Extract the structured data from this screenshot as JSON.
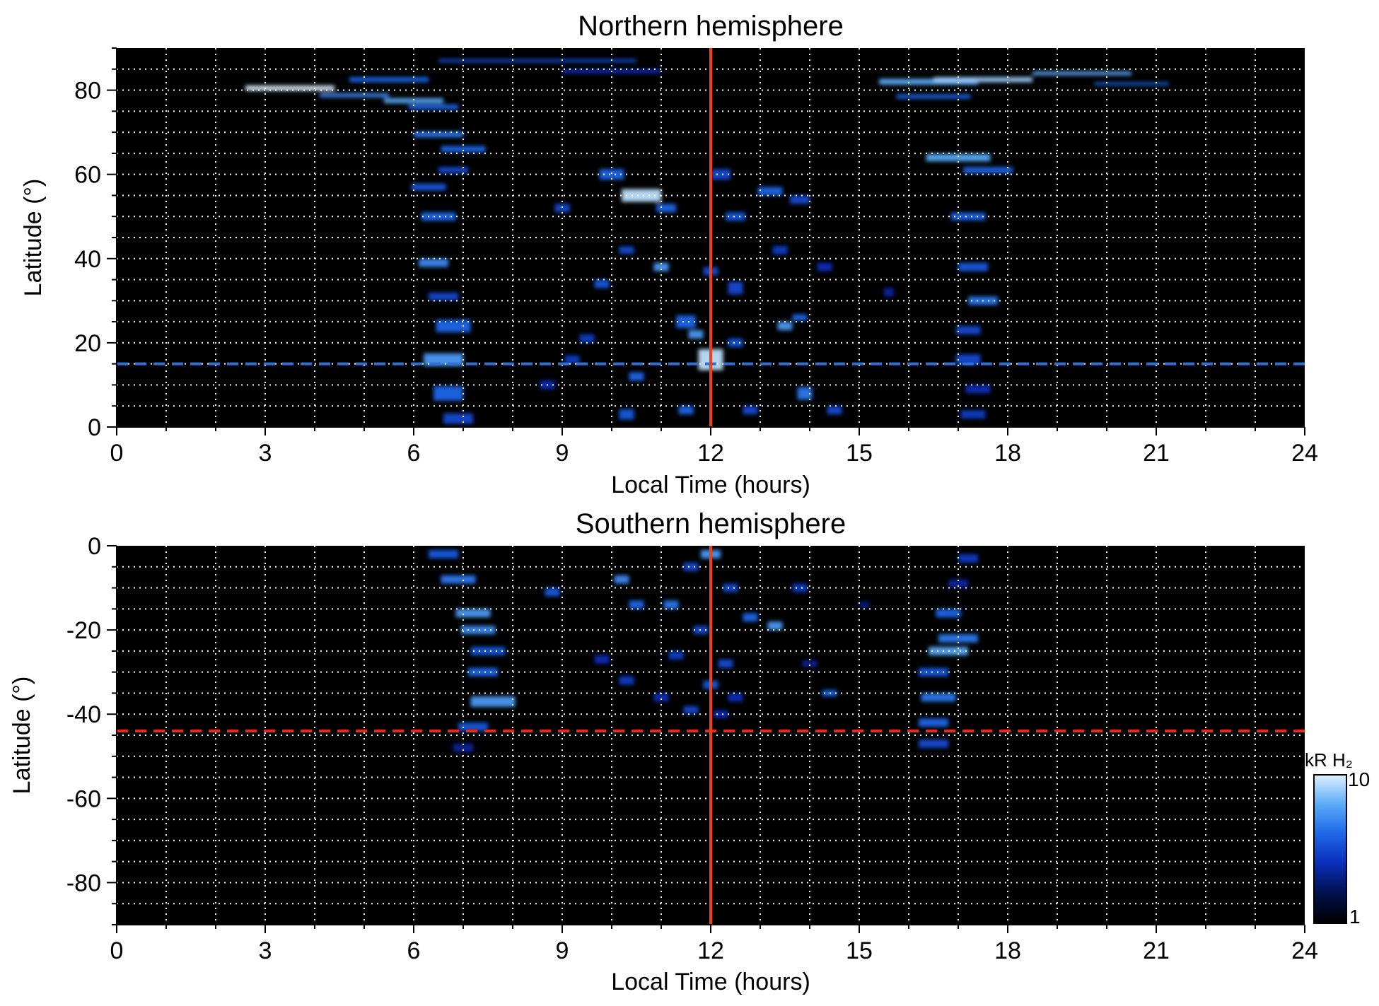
{
  "chart_data": [
    {
      "type": "heatmap",
      "title": "Northern hemisphere",
      "xlabel": "Local Time (hours)",
      "ylabel": "Latitude (°)",
      "xlim": [
        0,
        24
      ],
      "ylim": [
        0,
        90
      ],
      "xticks": [
        "0",
        "3",
        "6",
        "9",
        "12",
        "15",
        "18",
        "21",
        "24"
      ],
      "yticks": [
        "0",
        "20",
        "40",
        "60",
        "80"
      ],
      "ytick_values": [
        0,
        20,
        40,
        60,
        80
      ],
      "grid": true,
      "background": "#000000",
      "vertical_line": {
        "x": 12,
        "color": "#e8431a"
      },
      "horizontal_dashed_line": {
        "y": 15,
        "color": "#2f6fd6"
      },
      "blobs": [
        [
          3.5,
          80.5,
          1.8,
          1.2,
          1.0
        ],
        [
          5.5,
          82.5,
          1.6,
          1.2,
          0.6
        ],
        [
          4.8,
          78.8,
          1.4,
          1.0,
          0.7
        ],
        [
          6.0,
          77.5,
          1.2,
          1.2,
          0.8
        ],
        [
          6.4,
          76.0,
          1.0,
          1.2,
          0.6
        ],
        [
          8.5,
          87.0,
          4.0,
          0.8,
          0.5
        ],
        [
          10.0,
          84.5,
          2.0,
          1.0,
          0.4
        ],
        [
          6.5,
          69.5,
          1.0,
          1.4,
          0.65
        ],
        [
          7.0,
          66.0,
          0.9,
          1.5,
          0.6
        ],
        [
          6.8,
          61.0,
          0.6,
          1.5,
          0.5
        ],
        [
          6.3,
          57.0,
          0.7,
          1.6,
          0.55
        ],
        [
          6.5,
          50.0,
          0.7,
          2.0,
          0.6
        ],
        [
          6.4,
          39.0,
          0.6,
          2.0,
          0.7
        ],
        [
          6.6,
          31.0,
          0.6,
          1.8,
          0.5
        ],
        [
          6.8,
          24.0,
          0.7,
          3.0,
          0.6
        ],
        [
          6.6,
          16.0,
          0.8,
          3.0,
          0.75
        ],
        [
          6.7,
          8.0,
          0.6,
          3.5,
          0.6
        ],
        [
          6.9,
          2.0,
          0.6,
          2.5,
          0.5
        ],
        [
          10.0,
          60.0,
          0.5,
          2.5,
          0.6
        ],
        [
          10.6,
          55.0,
          0.8,
          3.0,
          0.95
        ],
        [
          11.1,
          52.0,
          0.4,
          2.0,
          0.6
        ],
        [
          9.0,
          52.0,
          0.3,
          2.0,
          0.5
        ],
        [
          12.2,
          60.0,
          0.4,
          2.5,
          0.5
        ],
        [
          12.5,
          50.0,
          0.4,
          2.0,
          0.55
        ],
        [
          13.2,
          56.0,
          0.5,
          2.0,
          0.6
        ],
        [
          13.8,
          54.0,
          0.4,
          2.0,
          0.5
        ],
        [
          11.0,
          38.0,
          0.3,
          2.0,
          0.75
        ],
        [
          12.0,
          37.0,
          0.3,
          2.0,
          0.5
        ],
        [
          12.5,
          33.0,
          0.3,
          3.0,
          0.5
        ],
        [
          9.8,
          34.0,
          0.3,
          2.0,
          0.55
        ],
        [
          10.3,
          42.0,
          0.3,
          1.8,
          0.5
        ],
        [
          13.4,
          42.0,
          0.3,
          2.0,
          0.45
        ],
        [
          14.3,
          38.0,
          0.3,
          2.0,
          0.4
        ],
        [
          11.5,
          25.0,
          0.4,
          3.0,
          0.6
        ],
        [
          12.0,
          16.0,
          0.5,
          5.0,
          0.95
        ],
        [
          11.7,
          22.0,
          0.3,
          2.0,
          0.75
        ],
        [
          12.5,
          20.0,
          0.3,
          2.0,
          0.55
        ],
        [
          13.5,
          24.0,
          0.3,
          2.0,
          0.75
        ],
        [
          13.8,
          26.0,
          0.3,
          1.5,
          0.6
        ],
        [
          10.5,
          12.0,
          0.3,
          2.0,
          0.6
        ],
        [
          10.3,
          3.0,
          0.3,
          2.5,
          0.55
        ],
        [
          11.5,
          4.0,
          0.3,
          2.0,
          0.6
        ],
        [
          12.8,
          4.0,
          0.3,
          2.0,
          0.5
        ],
        [
          13.9,
          8.0,
          0.3,
          3.0,
          0.65
        ],
        [
          14.5,
          4.0,
          0.3,
          2.0,
          0.5
        ],
        [
          9.2,
          16.0,
          0.3,
          2.0,
          0.45
        ],
        [
          8.7,
          10.0,
          0.3,
          2.0,
          0.4
        ],
        [
          9.5,
          21.0,
          0.3,
          2.0,
          0.45
        ],
        [
          15.6,
          32.0,
          0.2,
          2.0,
          0.35
        ],
        [
          16.4,
          82.0,
          2.0,
          1.4,
          0.8
        ],
        [
          17.5,
          82.5,
          2.0,
          1.2,
          0.9
        ],
        [
          19.5,
          84.0,
          2.0,
          0.9,
          0.8
        ],
        [
          20.5,
          81.5,
          1.5,
          0.7,
          0.6
        ],
        [
          16.5,
          78.5,
          1.5,
          1.0,
          0.6
        ],
        [
          17.0,
          64.0,
          1.3,
          1.8,
          0.8
        ],
        [
          17.6,
          61.0,
          1.0,
          1.5,
          0.6
        ],
        [
          17.2,
          50.0,
          0.7,
          1.8,
          0.6
        ],
        [
          17.3,
          38.0,
          0.6,
          2.0,
          0.55
        ],
        [
          17.5,
          30.0,
          0.6,
          2.0,
          0.65
        ],
        [
          17.2,
          23.0,
          0.5,
          2.0,
          0.5
        ],
        [
          17.2,
          16.0,
          0.5,
          2.5,
          0.5
        ],
        [
          17.4,
          9.0,
          0.5,
          2.0,
          0.4
        ],
        [
          17.3,
          3.0,
          0.5,
          2.0,
          0.45
        ]
      ]
    },
    {
      "type": "heatmap",
      "title": "Southern hemisphere",
      "xlabel": "Local Time (hours)",
      "ylabel": "Latitude (°)",
      "xlim": [
        0,
        24
      ],
      "ylim": [
        -90,
        0
      ],
      "xticks": [
        "0",
        "3",
        "6",
        "9",
        "12",
        "15",
        "18",
        "21",
        "24"
      ],
      "yticks": [
        "0",
        "-20",
        "-40",
        "-60",
        "-80"
      ],
      "ytick_values": [
        0,
        -20,
        -40,
        -60,
        -80
      ],
      "grid": true,
      "background": "#000000",
      "vertical_line": {
        "x": 12,
        "color": "#e8431a"
      },
      "horizontal_dashed_line": {
        "y": -44,
        "color": "#e82a1a"
      },
      "blobs": [
        [
          6.6,
          -2.0,
          0.6,
          2.0,
          0.55
        ],
        [
          6.9,
          -8.0,
          0.7,
          2.0,
          0.65
        ],
        [
          7.2,
          -16.0,
          0.7,
          2.0,
          0.75
        ],
        [
          7.3,
          -20.0,
          0.7,
          2.0,
          0.7
        ],
        [
          7.5,
          -25.0,
          0.7,
          2.0,
          0.55
        ],
        [
          7.4,
          -30.0,
          0.6,
          2.0,
          0.6
        ],
        [
          7.6,
          -37.0,
          0.9,
          2.5,
          0.75
        ],
        [
          7.2,
          -43.0,
          0.6,
          2.0,
          0.55
        ],
        [
          7.0,
          -48.0,
          0.4,
          2.0,
          0.35
        ],
        [
          10.2,
          -8.0,
          0.3,
          2.0,
          0.7
        ],
        [
          10.5,
          -14.0,
          0.3,
          2.0,
          0.6
        ],
        [
          11.2,
          -14.0,
          0.3,
          2.0,
          0.65
        ],
        [
          11.6,
          -5.0,
          0.3,
          2.0,
          0.5
        ],
        [
          12.0,
          -2.0,
          0.4,
          2.0,
          0.75
        ],
        [
          12.4,
          -10.0,
          0.3,
          2.0,
          0.5
        ],
        [
          12.8,
          -17.0,
          0.3,
          2.0,
          0.6
        ],
        [
          13.3,
          -19.0,
          0.3,
          2.0,
          0.75
        ],
        [
          13.8,
          -10.0,
          0.3,
          2.0,
          0.45
        ],
        [
          11.8,
          -20.0,
          0.3,
          2.0,
          0.5
        ],
        [
          11.3,
          -26.0,
          0.3,
          2.0,
          0.45
        ],
        [
          12.3,
          -28.0,
          0.3,
          2.0,
          0.5
        ],
        [
          12.0,
          -33.0,
          0.3,
          2.0,
          0.55
        ],
        [
          12.5,
          -36.0,
          0.3,
          2.0,
          0.4
        ],
        [
          11.0,
          -36.0,
          0.3,
          2.0,
          0.4
        ],
        [
          10.3,
          -32.0,
          0.3,
          2.0,
          0.45
        ],
        [
          9.8,
          -27.0,
          0.3,
          2.0,
          0.4
        ],
        [
          8.8,
          -11.0,
          0.3,
          2.0,
          0.55
        ],
        [
          11.6,
          -39.0,
          0.3,
          1.8,
          0.5
        ],
        [
          12.2,
          -40.0,
          0.3,
          1.8,
          0.4
        ],
        [
          14.4,
          -35.0,
          0.3,
          1.5,
          0.6
        ],
        [
          14.0,
          -28.0,
          0.3,
          1.5,
          0.35
        ],
        [
          15.1,
          -14.0,
          0.2,
          1.5,
          0.3
        ],
        [
          16.8,
          -16.0,
          0.5,
          2.0,
          0.6
        ],
        [
          17.0,
          -22.0,
          0.8,
          2.0,
          0.65
        ],
        [
          16.8,
          -25.0,
          0.8,
          2.0,
          0.8
        ],
        [
          16.5,
          -30.0,
          0.6,
          2.0,
          0.55
        ],
        [
          16.6,
          -36.0,
          0.7,
          2.0,
          0.65
        ],
        [
          16.5,
          -42.0,
          0.6,
          2.0,
          0.6
        ],
        [
          16.5,
          -47.0,
          0.6,
          2.0,
          0.5
        ],
        [
          17.2,
          -3.0,
          0.4,
          2.0,
          0.45
        ],
        [
          17.0,
          -9.0,
          0.4,
          2.0,
          0.35
        ]
      ]
    }
  ],
  "colorbar": {
    "label": "kR H₂",
    "max_label": "10",
    "min_label": "1",
    "colors": [
      "#000000",
      "#00104a",
      "#0a2cb8",
      "#1e66e8",
      "#5aaaf8",
      "#dff0ff"
    ]
  }
}
